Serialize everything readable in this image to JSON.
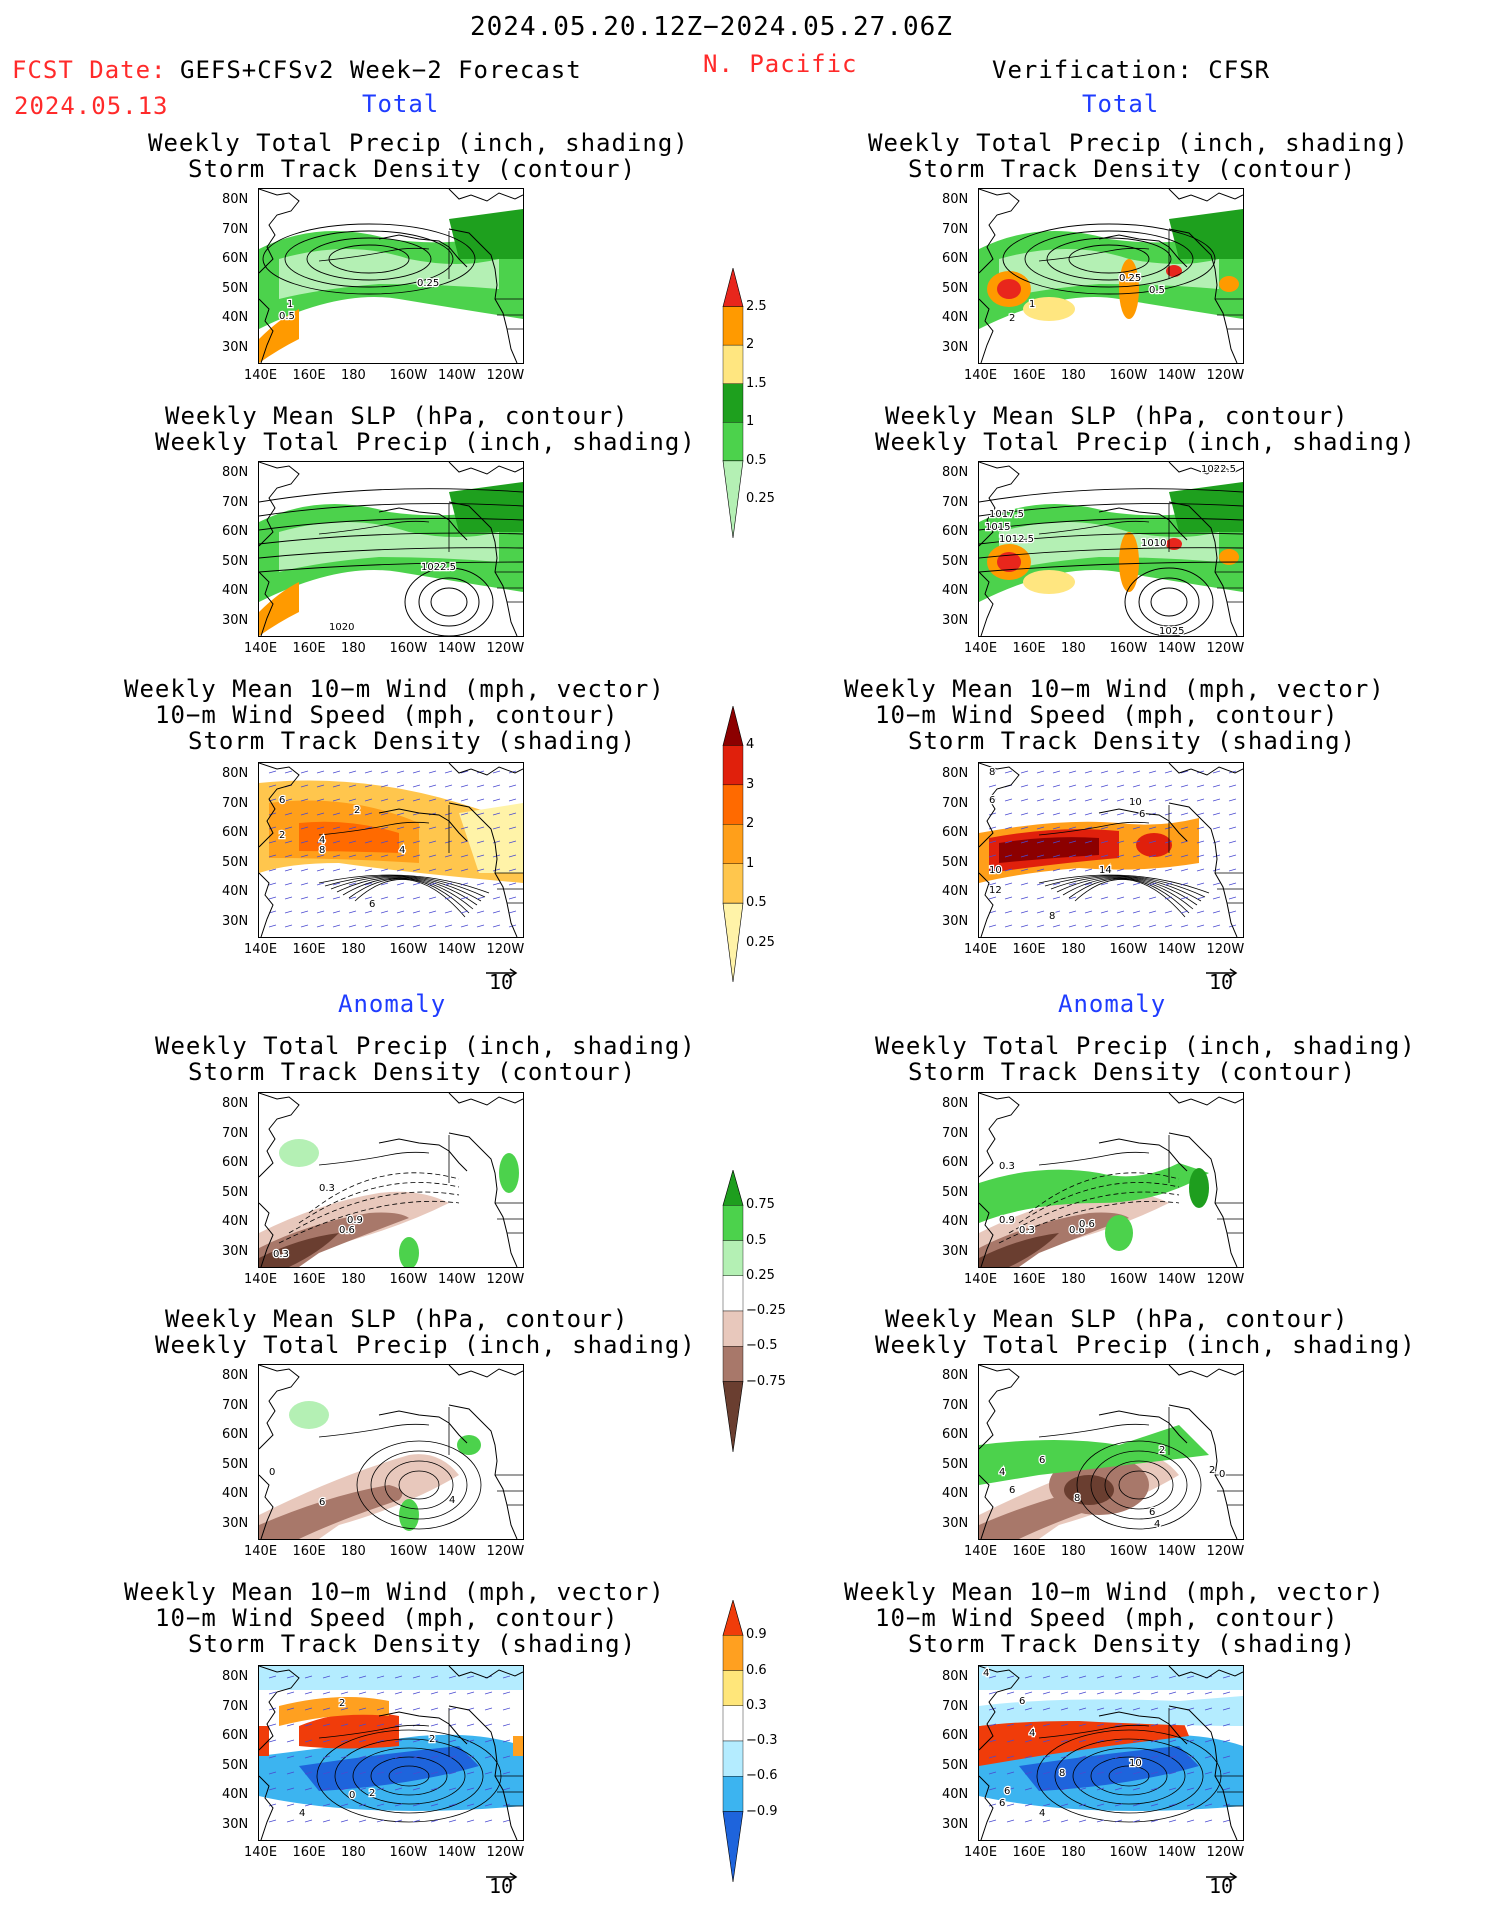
{
  "header": {
    "date_range": "2024.05.20.12Z−2024.05.27.06Z",
    "fcst_label": "FCST Date:",
    "fcst_model": "GEFS+CFSv2 Week−2 Forecast",
    "fcst_date": "2024.05.13",
    "region": "N. Pacific",
    "verification": "Verification: CFSR"
  },
  "sections": {
    "total": "Total",
    "anomaly": "Anomaly"
  },
  "titles": {
    "precip_storm_1": "Weekly Total Precip (inch, shading)",
    "precip_storm_2": "Storm Track Density (contour)",
    "slp_1": "Weekly Mean SLP (hPa, contour)",
    "slp_2": "Weekly Total Precip (inch, shading)",
    "wind_1": "Weekly Mean 10−m Wind (mph, vector)",
    "wind_2": "10−m Wind Speed (mph, contour)",
    "wind_3": "Storm Track Density (shading)"
  },
  "axes": {
    "lat": [
      "80N",
      "70N",
      "60N",
      "50N",
      "40N",
      "30N"
    ],
    "lon": [
      "140E",
      "160E",
      "180",
      "160W",
      "140W",
      "120W"
    ]
  },
  "vector_ref": "10",
  "colorbars": {
    "precip_total": {
      "labels": [
        "2.5",
        "2",
        "1.5",
        "1",
        "0.5",
        "0.25"
      ],
      "colors": [
        "#e8261c",
        "#ff9a00",
        "#ffe680",
        "#1ea01e",
        "#4cd24c",
        "#b4f0b4"
      ]
    },
    "storm_total": {
      "labels": [
        "4",
        "3",
        "2",
        "1",
        "0.5",
        "0.25"
      ],
      "colors": [
        "#8c0000",
        "#e0200c",
        "#ff6a00",
        "#ff9f1a",
        "#ffc64d",
        "#fff3a8"
      ]
    },
    "precip_anom": {
      "labels": [
        "0.75",
        "0.5",
        "0.25",
        "−0.25",
        "−0.5",
        "−0.75"
      ],
      "colors": [
        "#1e9e1e",
        "#4cd24c",
        "#b4f0b4",
        "#ffffff",
        "#e8c8bc",
        "#a8786a",
        "#6a3e30"
      ]
    },
    "storm_anom": {
      "labels": [
        "0.9",
        "0.6",
        "0.3",
        "−0.3",
        "−0.6",
        "−0.9"
      ],
      "colors": [
        "#f03c0a",
        "#ffa020",
        "#ffe67a",
        "#ffffff",
        "#b4ecff",
        "#3cb4f0",
        "#1e64dc"
      ]
    }
  },
  "contour_labels": {
    "p1_left": [
      "1",
      "0.5",
      "0.25"
    ],
    "p1_right": [
      "0.25",
      "0.5",
      "1",
      "2"
    ],
    "p2_left": [
      "1022.5",
      "1020"
    ],
    "p2_right": [
      "1022.5",
      "1017.5",
      "1015",
      "1012.5",
      "1010",
      "1025"
    ],
    "p3_left": [
      "6",
      "2",
      "2",
      "4",
      "8",
      "4",
      "6"
    ],
    "p3_right": [
      "8",
      "6",
      "10",
      "6",
      "10",
      "12",
      "14",
      "8"
    ],
    "p4_left": [
      "0.3",
      "0.6",
      "0.9",
      "0.3"
    ],
    "p4_right": [
      "0.3",
      "0.9",
      "0.6",
      "0.3",
      "0.6"
    ],
    "p5_left": [
      "0",
      "6",
      "4"
    ],
    "p5_right": [
      "2",
      "4",
      "6",
      "6",
      "2",
      "0",
      "8",
      "6",
      "4"
    ],
    "p6_left": [
      "2",
      "2",
      "0",
      "4",
      "2"
    ],
    "p6_right": [
      "4",
      "6",
      "4",
      "6",
      "8",
      "10",
      "6",
      "4"
    ]
  }
}
